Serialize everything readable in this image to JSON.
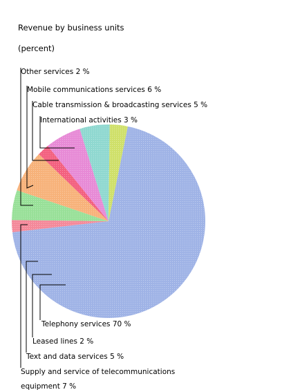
{
  "chart_data": {
    "type": "pie",
    "title": "Revenue by business units",
    "subtitle": "(percent)",
    "slices": [
      {
        "label": "Telephony services",
        "value": 70,
        "display": "Telephony services 70 %",
        "color": "#9fb3e6"
      },
      {
        "label": "Leased lines",
        "value": 2,
        "display": "Leased lines 2 %",
        "color": "#f4899a"
      },
      {
        "label": "Text and data services",
        "value": 5,
        "display": "Text and data services 5 %",
        "color": "#98e098"
      },
      {
        "label": "Supply and service of telecommunications equipment",
        "value": 7,
        "display_lines": [
          "Supply and service of telecommunications",
          "equipment 7 %"
        ],
        "color": "#f7b27a"
      },
      {
        "label": "Other services",
        "value": 2,
        "display": "Other services 2 %",
        "color": "#f3607f"
      },
      {
        "label": "Mobile communications services",
        "value": 6,
        "display": "Mobile communications services 6 %",
        "color": "#e78ad6"
      },
      {
        "label": "Cable transmission & broadcasting services",
        "value": 5,
        "display": "Cable transmission & broadcasting services 5 %",
        "color": "#8fd8d0"
      },
      {
        "label": "International activities",
        "value": 3,
        "display": "International activities 3 %",
        "color": "#cfe06a"
      }
    ]
  }
}
